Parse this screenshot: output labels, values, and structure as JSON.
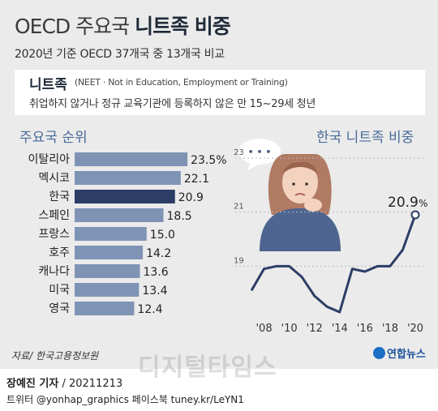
{
  "header": {
    "title_light": "OECD 주요국",
    "title_bold": "니트족 비중",
    "subtitle": "2020년 기준 OECD 37개국 중 13개국 비교"
  },
  "definition": {
    "term": "니트족",
    "abbr": "(NEET · Not in Education, Employment or Training)",
    "description": "취업하지 않거나 정규 교육기관에 등록하지 않은 만 15~29세 청년"
  },
  "footer": {
    "source": "자료/ 한국고용정보원",
    "logo": "연합뉴스",
    "watermark": "디지털타임스",
    "reporter_name": "장예진 기자",
    "reporter_date": " / 20211213",
    "social": "트위터 @yonhap_graphics  페이스북 tuney.kr/LeYN1"
  },
  "colors": {
    "bar": "#7f93b5",
    "bar_highlight": "#2c3d66",
    "line": "#2c3d66",
    "title_accent": "#4a6a99"
  },
  "illustration": {
    "speech_bubble": "• • •",
    "icon": "worried-person-icon"
  },
  "chart_data": [
    {
      "type": "bar",
      "title": "주요국 순위",
      "orientation": "horizontal",
      "categories": [
        "이탈리아",
        "멕시코",
        "한국",
        "스페인",
        "프랑스",
        "호주",
        "캐나다",
        "미국",
        "영국"
      ],
      "values": [
        23.5,
        22.1,
        20.9,
        18.5,
        15.0,
        14.2,
        13.6,
        13.4,
        12.4
      ],
      "value_labels": [
        "23.5%",
        "22.1",
        "20.9",
        "18.5",
        "15.0",
        "14.2",
        "13.6",
        "13.4",
        "12.4"
      ],
      "highlight": "한국",
      "xlim": [
        0,
        25
      ]
    },
    {
      "type": "line",
      "title": "한국 니트족 비중",
      "x": [
        2007,
        2008,
        2009,
        2010,
        2011,
        2012,
        2013,
        2014,
        2015,
        2016,
        2017,
        2018,
        2019,
        2020
      ],
      "values": [
        18.1,
        18.9,
        19.0,
        19.0,
        18.6,
        17.9,
        17.5,
        17.3,
        18.9,
        18.8,
        19.0,
        19.0,
        19.6,
        20.9
      ],
      "x_tick_labels": [
        "'08",
        "'10",
        "'12",
        "'14",
        "'16",
        "'18",
        "'20"
      ],
      "x_tick_values": [
        2008,
        2010,
        2012,
        2014,
        2016,
        2018,
        2020
      ],
      "y_ticks": [
        19,
        21,
        23
      ],
      "ylim": [
        17,
        23
      ],
      "end_label": "20.9",
      "end_unit": "%",
      "grid": "horizontal-dashed"
    }
  ]
}
